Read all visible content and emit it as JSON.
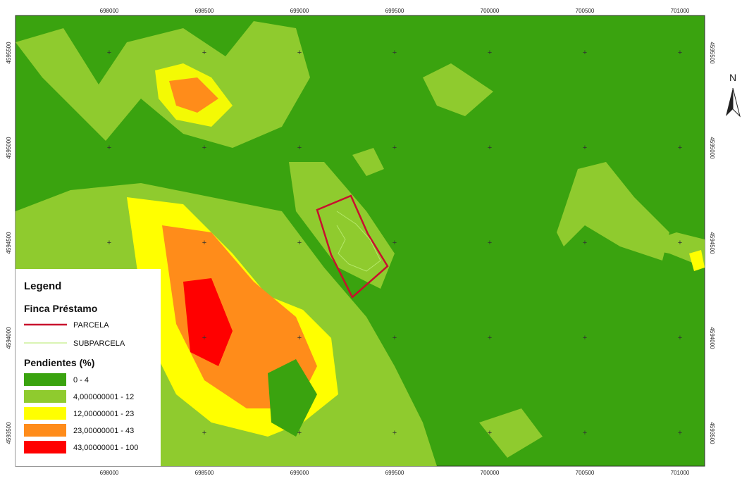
{
  "map": {
    "x_ticks": [
      698000,
      698500,
      699000,
      699500,
      700000,
      700500,
      701000
    ],
    "y_ticks": [
      4595500,
      4595000,
      4594500,
      4594000,
      4593500
    ],
    "north": "N",
    "legend": {
      "title": "Legend",
      "group1": "Finca Préstamo",
      "lines": [
        {
          "label": "PARCELA",
          "color": "#c8102e"
        },
        {
          "label": "SUBPARCELA",
          "color": "#b5e86a"
        }
      ],
      "group2": "Pendientes (%)",
      "classes": [
        {
          "label": "0 - 4",
          "color": "#3aa30f"
        },
        {
          "label": "4,000000001 - 12",
          "color": "#8fcb2e"
        },
        {
          "label": "12,00000001 - 23",
          "color": "#ffff00"
        },
        {
          "label": "23,00000001 - 43",
          "color": "#ff8c1a"
        },
        {
          "label": "43,00000001 - 100",
          "color": "#ff0000"
        }
      ]
    }
  }
}
